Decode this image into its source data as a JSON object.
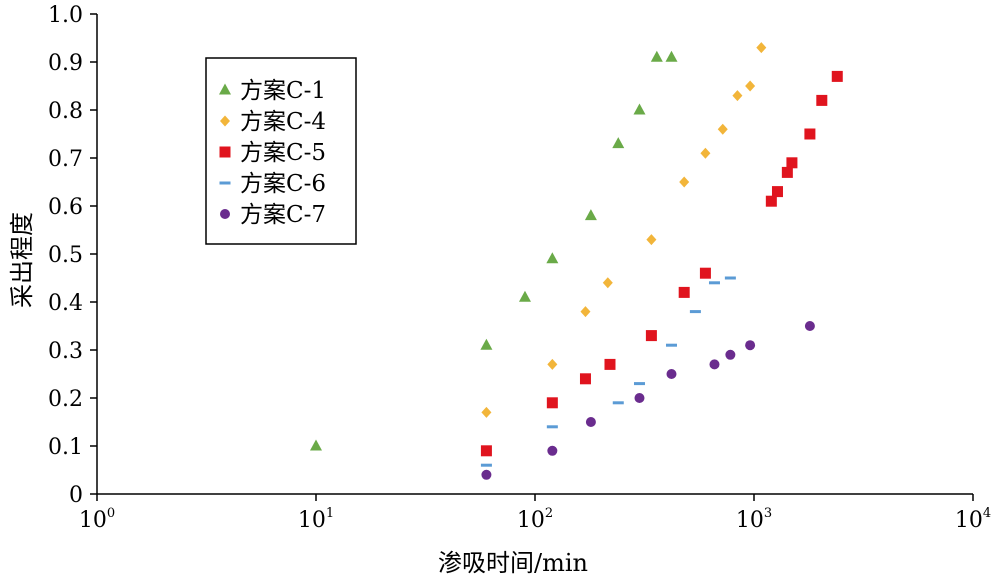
{
  "chart_data": {
    "type": "scatter",
    "xscale": "log",
    "xlabel": "渗吸时间/min",
    "ylabel": "采出程度",
    "xlim": [
      1,
      10000
    ],
    "ylim": [
      0,
      1.0
    ],
    "x_ticks": [
      {
        "base": "10",
        "exp": "0",
        "value": 1
      },
      {
        "base": "10",
        "exp": "1",
        "value": 10
      },
      {
        "base": "10",
        "exp": "2",
        "value": 100
      },
      {
        "base": "10",
        "exp": "3",
        "value": 1000
      },
      {
        "base": "10",
        "exp": "4",
        "value": 10000
      }
    ],
    "y_ticks": [
      "0",
      "0.1",
      "0.2",
      "0.3",
      "0.4",
      "0.5",
      "0.6",
      "0.7",
      "0.8",
      "0.9",
      "1.0"
    ],
    "grid": false,
    "legend_position": "top-left",
    "series": [
      {
        "name": "方案C-1",
        "marker": "triangle",
        "color": "#6aaa48",
        "points": [
          [
            10,
            0.1
          ],
          [
            60,
            0.31
          ],
          [
            90,
            0.41
          ],
          [
            120,
            0.49
          ],
          [
            180,
            0.58
          ],
          [
            240,
            0.73
          ],
          [
            300,
            0.8
          ],
          [
            360,
            0.91
          ],
          [
            420,
            0.91
          ]
        ]
      },
      {
        "name": "方案C-4",
        "marker": "diamond",
        "color": "#f2b53a",
        "points": [
          [
            60,
            0.17
          ],
          [
            120,
            0.27
          ],
          [
            170,
            0.38
          ],
          [
            215,
            0.44
          ],
          [
            340,
            0.53
          ],
          [
            480,
            0.65
          ],
          [
            600,
            0.71
          ],
          [
            720,
            0.76
          ],
          [
            840,
            0.83
          ],
          [
            960,
            0.85
          ],
          [
            1080,
            0.93
          ]
        ]
      },
      {
        "name": "方案C-5",
        "marker": "square",
        "color": "#e0141e",
        "points": [
          [
            60,
            0.09
          ],
          [
            120,
            0.19
          ],
          [
            170,
            0.24
          ],
          [
            220,
            0.27
          ],
          [
            340,
            0.33
          ],
          [
            480,
            0.42
          ],
          [
            600,
            0.46
          ],
          [
            1200,
            0.61
          ],
          [
            1280,
            0.63
          ],
          [
            1420,
            0.67
          ],
          [
            1490,
            0.69
          ],
          [
            1800,
            0.75
          ],
          [
            2040,
            0.82
          ],
          [
            2400,
            0.87
          ]
        ]
      },
      {
        "name": "方案C-6",
        "marker": "dash",
        "color": "#5b9bd5",
        "points": [
          [
            60,
            0.06
          ],
          [
            120,
            0.14
          ],
          [
            240,
            0.19
          ],
          [
            300,
            0.23
          ],
          [
            420,
            0.31
          ],
          [
            540,
            0.38
          ],
          [
            660,
            0.44
          ],
          [
            780,
            0.45
          ]
        ]
      },
      {
        "name": "方案C-7",
        "marker": "circle",
        "color": "#6a2c8e",
        "points": [
          [
            60,
            0.04
          ],
          [
            120,
            0.09
          ],
          [
            180,
            0.15
          ],
          [
            300,
            0.2
          ],
          [
            420,
            0.25
          ],
          [
            660,
            0.27
          ],
          [
            780,
            0.29
          ],
          [
            960,
            0.31
          ],
          [
            1800,
            0.35
          ]
        ]
      }
    ]
  }
}
